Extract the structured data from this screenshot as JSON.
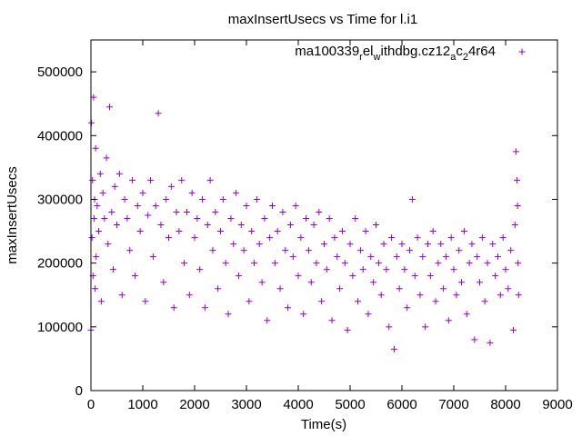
{
  "chart_data": {
    "type": "scatter",
    "title": "maxInsertUsecs vs Time for l.i1",
    "xlabel": "Time(s)",
    "ylabel": "maxInsertUsecs",
    "xlim": [
      0,
      9000
    ],
    "ylim": [
      0,
      550000
    ],
    "x_ticks": [
      0,
      1000,
      2000,
      3000,
      4000,
      5000,
      6000,
      7000,
      8000,
      9000
    ],
    "y_ticks": [
      0,
      100000,
      200000,
      300000,
      400000,
      500000
    ],
    "legend_position": "top-right",
    "series": [
      {
        "name_base": "ma100339",
        "name_parts": [
          {
            "text": "ma100339",
            "sub": false
          },
          {
            "text": "r",
            "sub": true
          },
          {
            "text": "el",
            "sub": false
          },
          {
            "text": "w",
            "sub": true
          },
          {
            "text": "ithdbg.cz12",
            "sub": false
          },
          {
            "text": "a",
            "sub": true
          },
          {
            "text": "c",
            "sub": false
          },
          {
            "text": "2",
            "sub": true
          },
          {
            "text": "4r64",
            "sub": false
          }
        ],
        "marker": "+",
        "color": "#9400d3",
        "points": [
          [
            0,
            95000
          ],
          [
            10,
            420000
          ],
          [
            20,
            240000
          ],
          [
            30,
            330000
          ],
          [
            40,
            180000
          ],
          [
            50,
            460000
          ],
          [
            60,
            270000
          ],
          [
            70,
            300000
          ],
          [
            80,
            160000
          ],
          [
            90,
            380000
          ],
          [
            100,
            210000
          ],
          [
            120,
            290000
          ],
          [
            150,
            250000
          ],
          [
            180,
            340000
          ],
          [
            200,
            140000
          ],
          [
            230,
            310000
          ],
          [
            260,
            270000
          ],
          [
            300,
            365000
          ],
          [
            330,
            230000
          ],
          [
            360,
            445000
          ],
          [
            400,
            280000
          ],
          [
            430,
            190000
          ],
          [
            460,
            320000
          ],
          [
            500,
            260000
          ],
          [
            550,
            340000
          ],
          [
            600,
            150000
          ],
          [
            650,
            300000
          ],
          [
            700,
            270000
          ],
          [
            750,
            220000
          ],
          [
            800,
            330000
          ],
          [
            850,
            180000
          ],
          [
            900,
            290000
          ],
          [
            950,
            250000
          ],
          [
            1000,
            310000
          ],
          [
            1050,
            140000
          ],
          [
            1100,
            275000
          ],
          [
            1150,
            330000
          ],
          [
            1200,
            210000
          ],
          [
            1250,
            290000
          ],
          [
            1300,
            435000
          ],
          [
            1350,
            260000
          ],
          [
            1400,
            170000
          ],
          [
            1450,
            300000
          ],
          [
            1500,
            240000
          ],
          [
            1550,
            320000
          ],
          [
            1600,
            130000
          ],
          [
            1650,
            280000
          ],
          [
            1700,
            250000
          ],
          [
            1750,
            330000
          ],
          [
            1800,
            200000
          ],
          [
            1850,
            280000
          ],
          [
            1900,
            150000
          ],
          [
            1950,
            310000
          ],
          [
            2000,
            240000
          ],
          [
            2050,
            270000
          ],
          [
            2100,
            190000
          ],
          [
            2150,
            300000
          ],
          [
            2200,
            130000
          ],
          [
            2250,
            260000
          ],
          [
            2300,
            330000
          ],
          [
            2350,
            220000
          ],
          [
            2400,
            280000
          ],
          [
            2450,
            160000
          ],
          [
            2500,
            250000
          ],
          [
            2550,
            300000
          ],
          [
            2600,
            200000
          ],
          [
            2650,
            120000
          ],
          [
            2700,
            270000
          ],
          [
            2750,
            230000
          ],
          [
            2800,
            310000
          ],
          [
            2850,
            180000
          ],
          [
            2900,
            260000
          ],
          [
            2950,
            220000
          ],
          [
            3000,
            290000
          ],
          [
            3050,
            140000
          ],
          [
            3100,
            250000
          ],
          [
            3150,
            200000
          ],
          [
            3200,
            300000
          ],
          [
            3250,
            230000
          ],
          [
            3300,
            170000
          ],
          [
            3350,
            270000
          ],
          [
            3400,
            110000
          ],
          [
            3450,
            240000
          ],
          [
            3500,
            290000
          ],
          [
            3550,
            200000
          ],
          [
            3600,
            250000
          ],
          [
            3650,
            160000
          ],
          [
            3700,
            280000
          ],
          [
            3750,
            220000
          ],
          [
            3800,
            130000
          ],
          [
            3850,
            260000
          ],
          [
            3900,
            210000
          ],
          [
            3950,
            290000
          ],
          [
            4000,
            180000
          ],
          [
            4050,
            240000
          ],
          [
            4100,
            120000
          ],
          [
            4150,
            270000
          ],
          [
            4200,
            220000
          ],
          [
            4250,
            170000
          ],
          [
            4300,
            260000
          ],
          [
            4350,
            200000
          ],
          [
            4400,
            280000
          ],
          [
            4450,
            140000
          ],
          [
            4500,
            230000
          ],
          [
            4550,
            190000
          ],
          [
            4600,
            270000
          ],
          [
            4650,
            110000
          ],
          [
            4700,
            240000
          ],
          [
            4750,
            210000
          ],
          [
            4800,
            160000
          ],
          [
            4850,
            250000
          ],
          [
            4900,
            200000
          ],
          [
            4950,
            95000
          ],
          [
            5000,
            230000
          ],
          [
            5050,
            180000
          ],
          [
            5100,
            270000
          ],
          [
            5150,
            140000
          ],
          [
            5200,
            220000
          ],
          [
            5250,
            190000
          ],
          [
            5300,
            250000
          ],
          [
            5350,
            120000
          ],
          [
            5400,
            210000
          ],
          [
            5450,
            170000
          ],
          [
            5500,
            260000
          ],
          [
            5550,
            200000
          ],
          [
            5600,
            150000
          ],
          [
            5650,
            230000
          ],
          [
            5700,
            190000
          ],
          [
            5750,
            100000
          ],
          [
            5800,
            240000
          ],
          [
            5850,
            65000
          ],
          [
            5900,
            210000
          ],
          [
            5950,
            160000
          ],
          [
            6000,
            230000
          ],
          [
            6050,
            190000
          ],
          [
            6100,
            130000
          ],
          [
            6150,
            220000
          ],
          [
            6200,
            300000
          ],
          [
            6250,
            180000
          ],
          [
            6300,
            240000
          ],
          [
            6350,
            150000
          ],
          [
            6400,
            210000
          ],
          [
            6450,
            100000
          ],
          [
            6500,
            230000
          ],
          [
            6550,
            180000
          ],
          [
            6600,
            250000
          ],
          [
            6650,
            140000
          ],
          [
            6700,
            200000
          ],
          [
            6750,
            230000
          ],
          [
            6800,
            160000
          ],
          [
            6850,
            210000
          ],
          [
            6900,
            110000
          ],
          [
            6950,
            240000
          ],
          [
            7000,
            190000
          ],
          [
            7050,
            150000
          ],
          [
            7100,
            220000
          ],
          [
            7150,
            170000
          ],
          [
            7200,
            250000
          ],
          [
            7250,
            120000
          ],
          [
            7300,
            200000
          ],
          [
            7350,
            230000
          ],
          [
            7400,
            80000
          ],
          [
            7450,
            210000
          ],
          [
            7500,
            170000
          ],
          [
            7550,
            240000
          ],
          [
            7600,
            140000
          ],
          [
            7650,
            200000
          ],
          [
            7700,
            75000
          ],
          [
            7750,
            230000
          ],
          [
            7800,
            180000
          ],
          [
            7850,
            210000
          ],
          [
            7900,
            150000
          ],
          [
            7950,
            240000
          ],
          [
            8000,
            190000
          ],
          [
            8050,
            160000
          ],
          [
            8100,
            220000
          ],
          [
            8150,
            95000
          ],
          [
            8180,
            260000
          ],
          [
            8200,
            375000
          ],
          [
            8220,
            330000
          ],
          [
            8230,
            290000
          ],
          [
            8240,
            200000
          ],
          [
            8250,
            150000
          ]
        ]
      }
    ]
  }
}
